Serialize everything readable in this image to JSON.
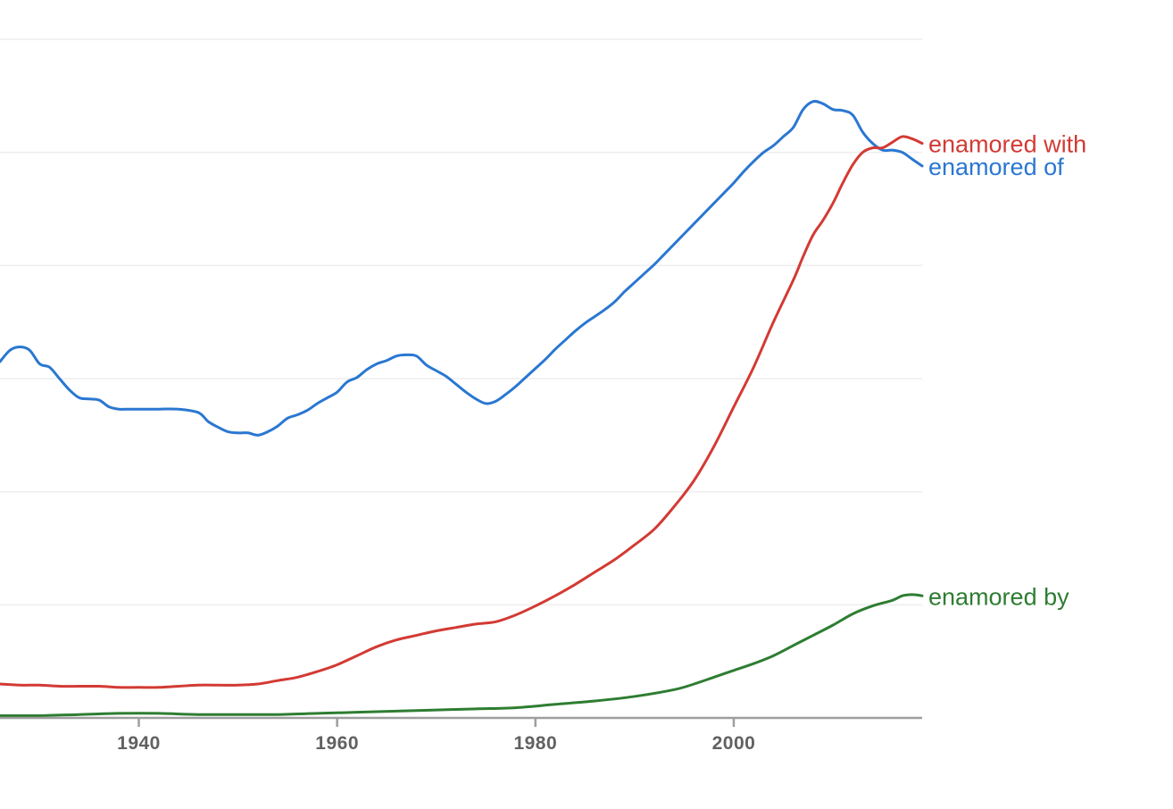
{
  "chart_data": {
    "type": "line",
    "x_ticks": [
      {
        "value": 1940,
        "label": "1940"
      },
      {
        "value": 1960,
        "label": "1960"
      },
      {
        "value": 1980,
        "label": "1980"
      },
      {
        "value": 2000,
        "label": "2000"
      }
    ],
    "xlim": [
      1926,
      2019
    ],
    "ylim": [
      0,
      6
    ],
    "grid": true,
    "legend": "inline-right",
    "series": [
      {
        "name": "enamored of",
        "color": "#2a77d1",
        "points": [
          [
            1926,
            3.15
          ],
          [
            1927,
            3.25
          ],
          [
            1928,
            3.28
          ],
          [
            1929,
            3.25
          ],
          [
            1930,
            3.13
          ],
          [
            1931,
            3.1
          ],
          [
            1932,
            3.0
          ],
          [
            1933,
            2.9
          ],
          [
            1934,
            2.83
          ],
          [
            1935,
            2.82
          ],
          [
            1936,
            2.81
          ],
          [
            1937,
            2.75
          ],
          [
            1938,
            2.73
          ],
          [
            1939,
            2.73
          ],
          [
            1940,
            2.73
          ],
          [
            1942,
            2.73
          ],
          [
            1944,
            2.73
          ],
          [
            1946,
            2.7
          ],
          [
            1947,
            2.62
          ],
          [
            1948,
            2.57
          ],
          [
            1949,
            2.53
          ],
          [
            1950,
            2.52
          ],
          [
            1951,
            2.52
          ],
          [
            1952,
            2.5
          ],
          [
            1953,
            2.53
          ],
          [
            1954,
            2.58
          ],
          [
            1955,
            2.65
          ],
          [
            1956,
            2.68
          ],
          [
            1957,
            2.72
          ],
          [
            1958,
            2.78
          ],
          [
            1959,
            2.83
          ],
          [
            1960,
            2.88
          ],
          [
            1961,
            2.97
          ],
          [
            1962,
            3.01
          ],
          [
            1963,
            3.08
          ],
          [
            1964,
            3.13
          ],
          [
            1965,
            3.16
          ],
          [
            1966,
            3.2
          ],
          [
            1967,
            3.21
          ],
          [
            1968,
            3.2
          ],
          [
            1969,
            3.12
          ],
          [
            1970,
            3.07
          ],
          [
            1971,
            3.02
          ],
          [
            1972,
            2.95
          ],
          [
            1973,
            2.88
          ],
          [
            1974,
            2.82
          ],
          [
            1975,
            2.78
          ],
          [
            1976,
            2.8
          ],
          [
            1977,
            2.86
          ],
          [
            1978,
            2.93
          ],
          [
            1979,
            3.01
          ],
          [
            1980,
            3.09
          ],
          [
            1981,
            3.17
          ],
          [
            1982,
            3.26
          ],
          [
            1983,
            3.34
          ],
          [
            1984,
            3.42
          ],
          [
            1985,
            3.49
          ],
          [
            1986,
            3.55
          ],
          [
            1987,
            3.61
          ],
          [
            1988,
            3.68
          ],
          [
            1989,
            3.77
          ],
          [
            1990,
            3.85
          ],
          [
            1991,
            3.93
          ],
          [
            1992,
            4.01
          ],
          [
            1993,
            4.1
          ],
          [
            1994,
            4.19
          ],
          [
            1995,
            4.28
          ],
          [
            1996,
            4.37
          ],
          [
            1997,
            4.46
          ],
          [
            1998,
            4.55
          ],
          [
            1999,
            4.64
          ],
          [
            2000,
            4.73
          ],
          [
            2001,
            4.83
          ],
          [
            2002,
            4.92
          ],
          [
            2003,
            5.0
          ],
          [
            2004,
            5.06
          ],
          [
            2005,
            5.14
          ],
          [
            2006,
            5.22
          ],
          [
            2007,
            5.38
          ],
          [
            2008,
            5.45
          ],
          [
            2009,
            5.43
          ],
          [
            2010,
            5.38
          ],
          [
            2011,
            5.37
          ],
          [
            2012,
            5.33
          ],
          [
            2013,
            5.18
          ],
          [
            2014,
            5.08
          ],
          [
            2015,
            5.02
          ],
          [
            2016,
            5.02
          ],
          [
            2017,
            5.0
          ],
          [
            2018,
            4.94
          ],
          [
            2019,
            4.88
          ]
        ]
      },
      {
        "name": "enamored with",
        "color": "#d33a34",
        "points": [
          [
            1926,
            0.3
          ],
          [
            1928,
            0.29
          ],
          [
            1930,
            0.29
          ],
          [
            1932,
            0.28
          ],
          [
            1934,
            0.28
          ],
          [
            1936,
            0.28
          ],
          [
            1938,
            0.27
          ],
          [
            1940,
            0.27
          ],
          [
            1942,
            0.27
          ],
          [
            1944,
            0.28
          ],
          [
            1946,
            0.29
          ],
          [
            1948,
            0.29
          ],
          [
            1950,
            0.29
          ],
          [
            1952,
            0.3
          ],
          [
            1954,
            0.33
          ],
          [
            1956,
            0.36
          ],
          [
            1958,
            0.41
          ],
          [
            1960,
            0.47
          ],
          [
            1962,
            0.55
          ],
          [
            1964,
            0.63
          ],
          [
            1966,
            0.69
          ],
          [
            1968,
            0.73
          ],
          [
            1970,
            0.77
          ],
          [
            1972,
            0.8
          ],
          [
            1974,
            0.83
          ],
          [
            1976,
            0.85
          ],
          [
            1978,
            0.91
          ],
          [
            1980,
            0.99
          ],
          [
            1982,
            1.08
          ],
          [
            1984,
            1.18
          ],
          [
            1986,
            1.29
          ],
          [
            1988,
            1.4
          ],
          [
            1990,
            1.53
          ],
          [
            1992,
            1.67
          ],
          [
            1994,
            1.87
          ],
          [
            1996,
            2.1
          ],
          [
            1998,
            2.4
          ],
          [
            2000,
            2.75
          ],
          [
            2002,
            3.1
          ],
          [
            2004,
            3.5
          ],
          [
            2006,
            3.87
          ],
          [
            2007,
            4.08
          ],
          [
            2008,
            4.27
          ],
          [
            2009,
            4.4
          ],
          [
            2010,
            4.55
          ],
          [
            2011,
            4.73
          ],
          [
            2012,
            4.89
          ],
          [
            2013,
            5.0
          ],
          [
            2014,
            5.04
          ],
          [
            2015,
            5.04
          ],
          [
            2016,
            5.09
          ],
          [
            2017,
            5.14
          ],
          [
            2018,
            5.12
          ],
          [
            2019,
            5.08
          ]
        ]
      },
      {
        "name": "enamored by",
        "color": "#2e7d32",
        "points": [
          [
            1926,
            0.02
          ],
          [
            1930,
            0.02
          ],
          [
            1934,
            0.03
          ],
          [
            1938,
            0.04
          ],
          [
            1942,
            0.04
          ],
          [
            1946,
            0.03
          ],
          [
            1950,
            0.03
          ],
          [
            1954,
            0.03
          ],
          [
            1958,
            0.04
          ],
          [
            1962,
            0.05
          ],
          [
            1966,
            0.06
          ],
          [
            1970,
            0.07
          ],
          [
            1974,
            0.08
          ],
          [
            1978,
            0.09
          ],
          [
            1982,
            0.12
          ],
          [
            1986,
            0.15
          ],
          [
            1990,
            0.19
          ],
          [
            1994,
            0.25
          ],
          [
            1996,
            0.3
          ],
          [
            1998,
            0.36
          ],
          [
            2000,
            0.42
          ],
          [
            2002,
            0.48
          ],
          [
            2004,
            0.55
          ],
          [
            2006,
            0.64
          ],
          [
            2008,
            0.73
          ],
          [
            2010,
            0.82
          ],
          [
            2012,
            0.92
          ],
          [
            2014,
            0.99
          ],
          [
            2016,
            1.04
          ],
          [
            2017,
            1.08
          ],
          [
            2018,
            1.09
          ],
          [
            2019,
            1.08
          ]
        ]
      }
    ]
  }
}
